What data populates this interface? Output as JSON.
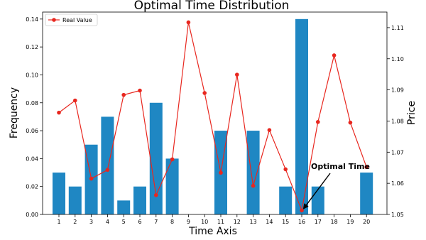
{
  "chart_data": {
    "type": "bar",
    "title": "Optimal Time Distribution",
    "xlabel": "Time Axis",
    "ylabel": "Frequency",
    "y2label": "Price",
    "categories": [
      "1",
      "2",
      "3",
      "4",
      "5",
      "6",
      "7",
      "8",
      "9",
      "10",
      "11",
      "12",
      "13",
      "14",
      "15",
      "16",
      "17",
      "18",
      "19",
      "20"
    ],
    "bar_values": [
      0.03,
      0.02,
      0.05,
      0.07,
      0.01,
      0.02,
      0.08,
      0.04,
      0,
      0,
      0.06,
      0,
      0.06,
      0,
      0.02,
      0.14,
      0.02,
      0,
      0,
      0.03
    ],
    "ylim": [
      0,
      0.145
    ],
    "yticks": [
      "0.00",
      "0.02",
      "0.04",
      "0.06",
      "0.08",
      "0.10",
      "0.12",
      "0.14"
    ],
    "ytick_values": [
      0,
      0.02,
      0.04,
      0.06,
      0.08,
      0.1,
      0.12,
      0.14
    ],
    "series": [
      {
        "name": "Real Value",
        "type": "line",
        "axis": "right",
        "values": [
          1.0827,
          1.0866,
          1.0615,
          1.0643,
          1.0884,
          1.0898,
          1.0562,
          1.0677,
          1.1117,
          1.089,
          1.0634,
          1.0949,
          1.0592,
          1.0771,
          1.0645,
          1.0513,
          1.0797,
          1.1011,
          1.0795,
          1.0652
        ]
      }
    ],
    "y2lim": [
      1.05,
      1.115
    ],
    "y2ticks": [
      "1.05",
      "1.06",
      "1.07",
      "1.08",
      "1.09",
      "1.10",
      "1.11"
    ],
    "y2tick_values": [
      1.05,
      1.06,
      1.07,
      1.08,
      1.09,
      1.1,
      1.11
    ],
    "annotation": {
      "text": "Optimal Time",
      "target_index": 15
    },
    "legend_position": "top-left",
    "grid": false,
    "colors": {
      "bar": "#1f87c3",
      "line": "#e8271f",
      "axis": "#000000"
    }
  }
}
